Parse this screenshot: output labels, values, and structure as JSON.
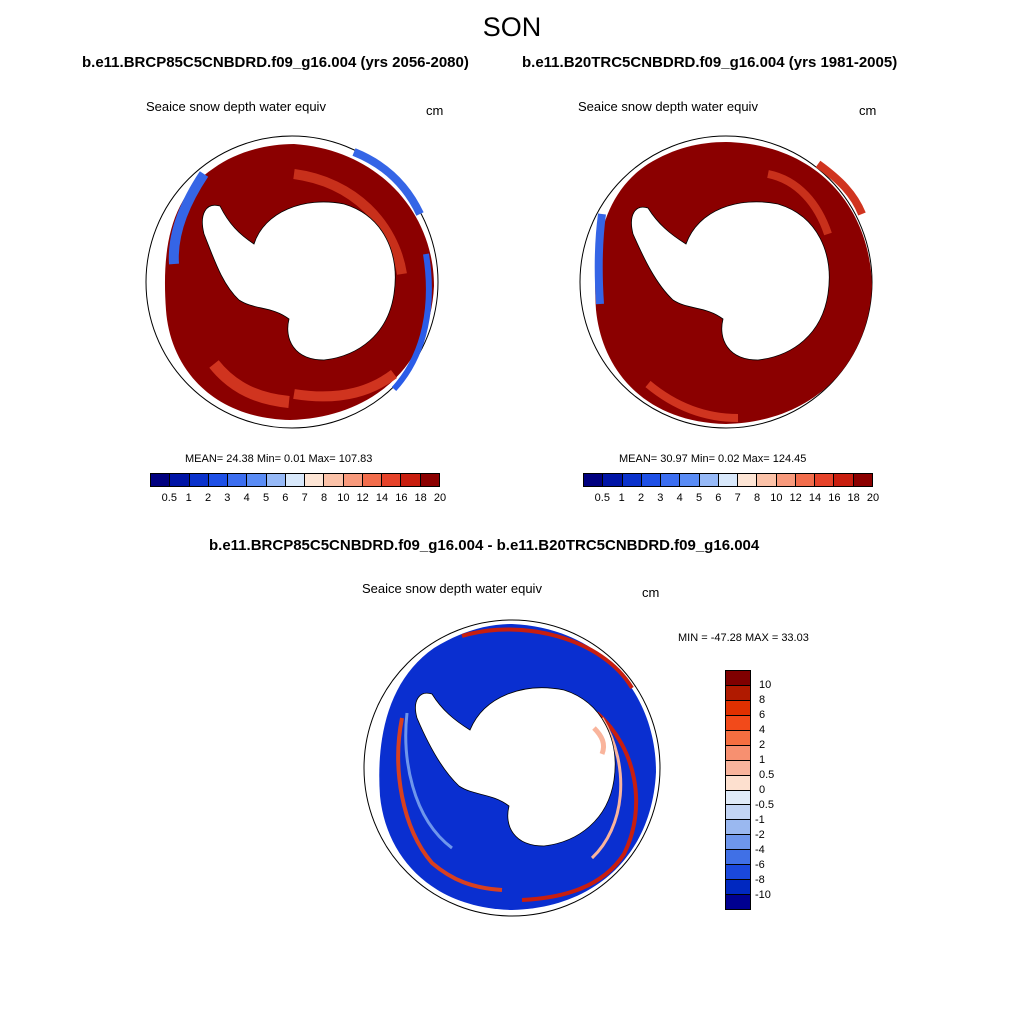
{
  "season": "SON",
  "panels": [
    {
      "title": "b.e11.BRCP85C5CNBDRD.f09_g16.004 (yrs 2056-2080)",
      "variable": "Seaice snow depth water equiv",
      "units": "cm",
      "stats": "MEAN=  24.38  Min=    0.01  Max= 107.83",
      "colorbar_labels": [
        "0.5",
        "1",
        "2",
        "3",
        "4",
        "5",
        "6",
        "7",
        "8",
        "10",
        "12",
        "14",
        "16",
        "18",
        "20"
      ],
      "colors": [
        "#00007f",
        "#0014a6",
        "#0a32cc",
        "#1e50e6",
        "#3c6ef0",
        "#5a8cf5",
        "#96b9f7",
        "#d8e8fb",
        "#fde5d5",
        "#fbc2a8",
        "#f89a7c",
        "#f26d4c",
        "#e6432a",
        "#c81e0f",
        "#8b0000"
      ]
    },
    {
      "title": "b.e11.B20TRC5CNBDRD.f09_g16.004 (yrs 1981-2005)",
      "variable": "Seaice snow depth water equiv",
      "units": "cm",
      "stats": "MEAN=  30.97  Min=    0.02  Max= 124.45",
      "colorbar_labels": [
        "0.5",
        "1",
        "2",
        "3",
        "4",
        "5",
        "6",
        "7",
        "8",
        "10",
        "12",
        "14",
        "16",
        "18",
        "20"
      ],
      "colors": [
        "#00007f",
        "#0014a6",
        "#0a32cc",
        "#1e50e6",
        "#3c6ef0",
        "#5a8cf5",
        "#96b9f7",
        "#d8e8fb",
        "#fde5d5",
        "#fbc2a8",
        "#f89a7c",
        "#f26d4c",
        "#e6432a",
        "#c81e0f",
        "#8b0000"
      ]
    }
  ],
  "difference": {
    "title": "b.e11.BRCP85C5CNBDRD.f09_g16.004 - b.e11.B20TRC5CNBDRD.f09_g16.004",
    "variable": "Seaice snow depth water equiv",
    "units": "cm",
    "stats": "MIN = -47.28 MAX =  33.03",
    "colorbar_labels": [
      "10",
      "8",
      "6",
      "4",
      "2",
      "1",
      "0.5",
      "0",
      "-0.5",
      "-1",
      "-2",
      "-4",
      "-6",
      "-8",
      "-10"
    ],
    "colors": [
      "#7f0000",
      "#b01a00",
      "#e03000",
      "#f24a1a",
      "#f56e40",
      "#f79070",
      "#f9b49c",
      "#fde0cf",
      "#dfeaf8",
      "#c2d4f4",
      "#9ab8f0",
      "#6e96ec",
      "#4070e6",
      "#1a48dc",
      "#0028c0",
      "#000090"
    ]
  },
  "map_colors": {
    "ice_high": "#8b0000",
    "ice_mid": "#d0341f",
    "ice_edge_blue": "#2a5ce8",
    "land": "#ffffff",
    "diff_blue": "#0a2fd0",
    "diff_red": "#c81e0f"
  }
}
